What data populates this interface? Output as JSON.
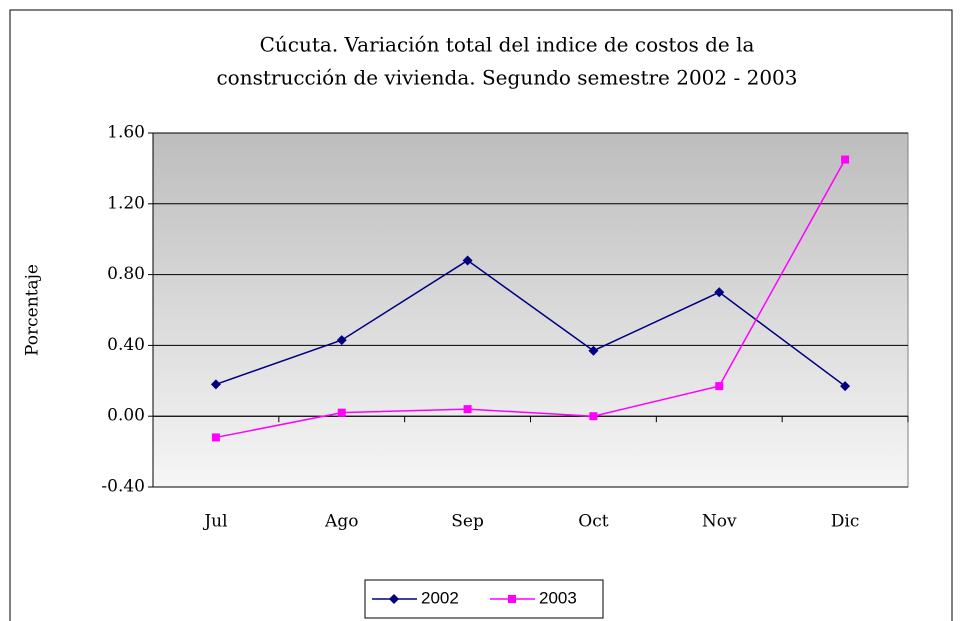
{
  "chart_data": {
    "type": "line",
    "title": [
      "Cúcuta.  Variación total del indice de costos de la",
      "construcción de vivienda.  Segundo semestre 2002 - 2003"
    ],
    "y_label": "Porcentaje",
    "categories": [
      "Jul",
      "Ago",
      "Sep",
      "Oct",
      "Nov",
      "Dic"
    ],
    "series": [
      {
        "name": "2002",
        "color": "#000080",
        "marker": "diamond",
        "values": [
          0.18,
          0.43,
          0.88,
          0.37,
          0.7,
          0.17
        ]
      },
      {
        "name": "2003",
        "color": "#ff00ff",
        "marker": "square",
        "values": [
          -0.12,
          0.02,
          0.04,
          0.0,
          0.17,
          1.45
        ]
      }
    ],
    "ylim": [
      -0.4,
      1.6
    ],
    "yticks": [
      {
        "value": -0.4,
        "label": "-0.40"
      },
      {
        "value": 0,
        "label": "0.00"
      },
      {
        "value": 0.4,
        "label": "0.40"
      },
      {
        "value": 0.8,
        "label": "0.80"
      },
      {
        "value": 1.2,
        "label": "1.20"
      },
      {
        "value": 1.6,
        "label": "1.60"
      }
    ],
    "grid": true,
    "legend": "bottom"
  }
}
